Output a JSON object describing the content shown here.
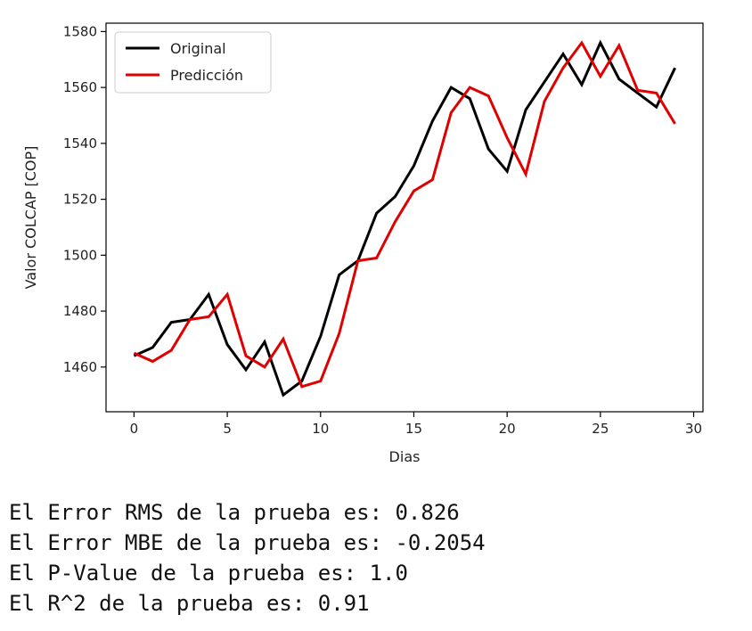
{
  "chart_data": {
    "type": "line",
    "xlabel": "Dias",
    "ylabel": "Valor COLCAP [COP]",
    "xlim": [
      -1.5,
      30.5
    ],
    "ylim": [
      1444,
      1583
    ],
    "xticks": [
      0,
      5,
      10,
      15,
      20,
      25,
      30
    ],
    "yticks": [
      1460,
      1480,
      1500,
      1520,
      1540,
      1560,
      1580
    ],
    "grid": false,
    "legend_position": "top-left",
    "x": [
      0,
      1,
      2,
      3,
      4,
      5,
      6,
      7,
      8,
      9,
      10,
      11,
      12,
      13,
      14,
      15,
      16,
      17,
      18,
      19,
      20,
      21,
      22,
      23,
      24,
      25,
      26,
      27,
      28,
      29
    ],
    "series": [
      {
        "name": "Original",
        "color": "#000000",
        "values": [
          1464,
          1467,
          1476,
          1477,
          1486,
          1468,
          1459,
          1469,
          1450,
          1455,
          1471,
          1493,
          1498,
          1515,
          1521,
          1532,
          1548,
          1560,
          1556,
          1538,
          1530,
          1552,
          1562,
          1572,
          1561,
          1576,
          1563,
          1558,
          1553,
          1567
        ]
      },
      {
        "name": "Predicción",
        "color": "#e00000",
        "values": [
          1465,
          1462,
          1466,
          1477,
          1478,
          1486,
          1464,
          1460,
          1470,
          1453,
          1455,
          1472,
          1498,
          1499,
          1512,
          1523,
          1527,
          1551,
          1560,
          1557,
          1542,
          1529,
          1555,
          1567,
          1576,
          1564,
          1575,
          1559,
          1558,
          1547
        ]
      }
    ]
  },
  "output_lines": [
    "El Error RMS de la prueba es: 0.826",
    "El Error MBE de la prueba es: -0.2054",
    "El P-Value de la prueba es: 1.0",
    "El R^2 de la prueba es: 0.91"
  ]
}
